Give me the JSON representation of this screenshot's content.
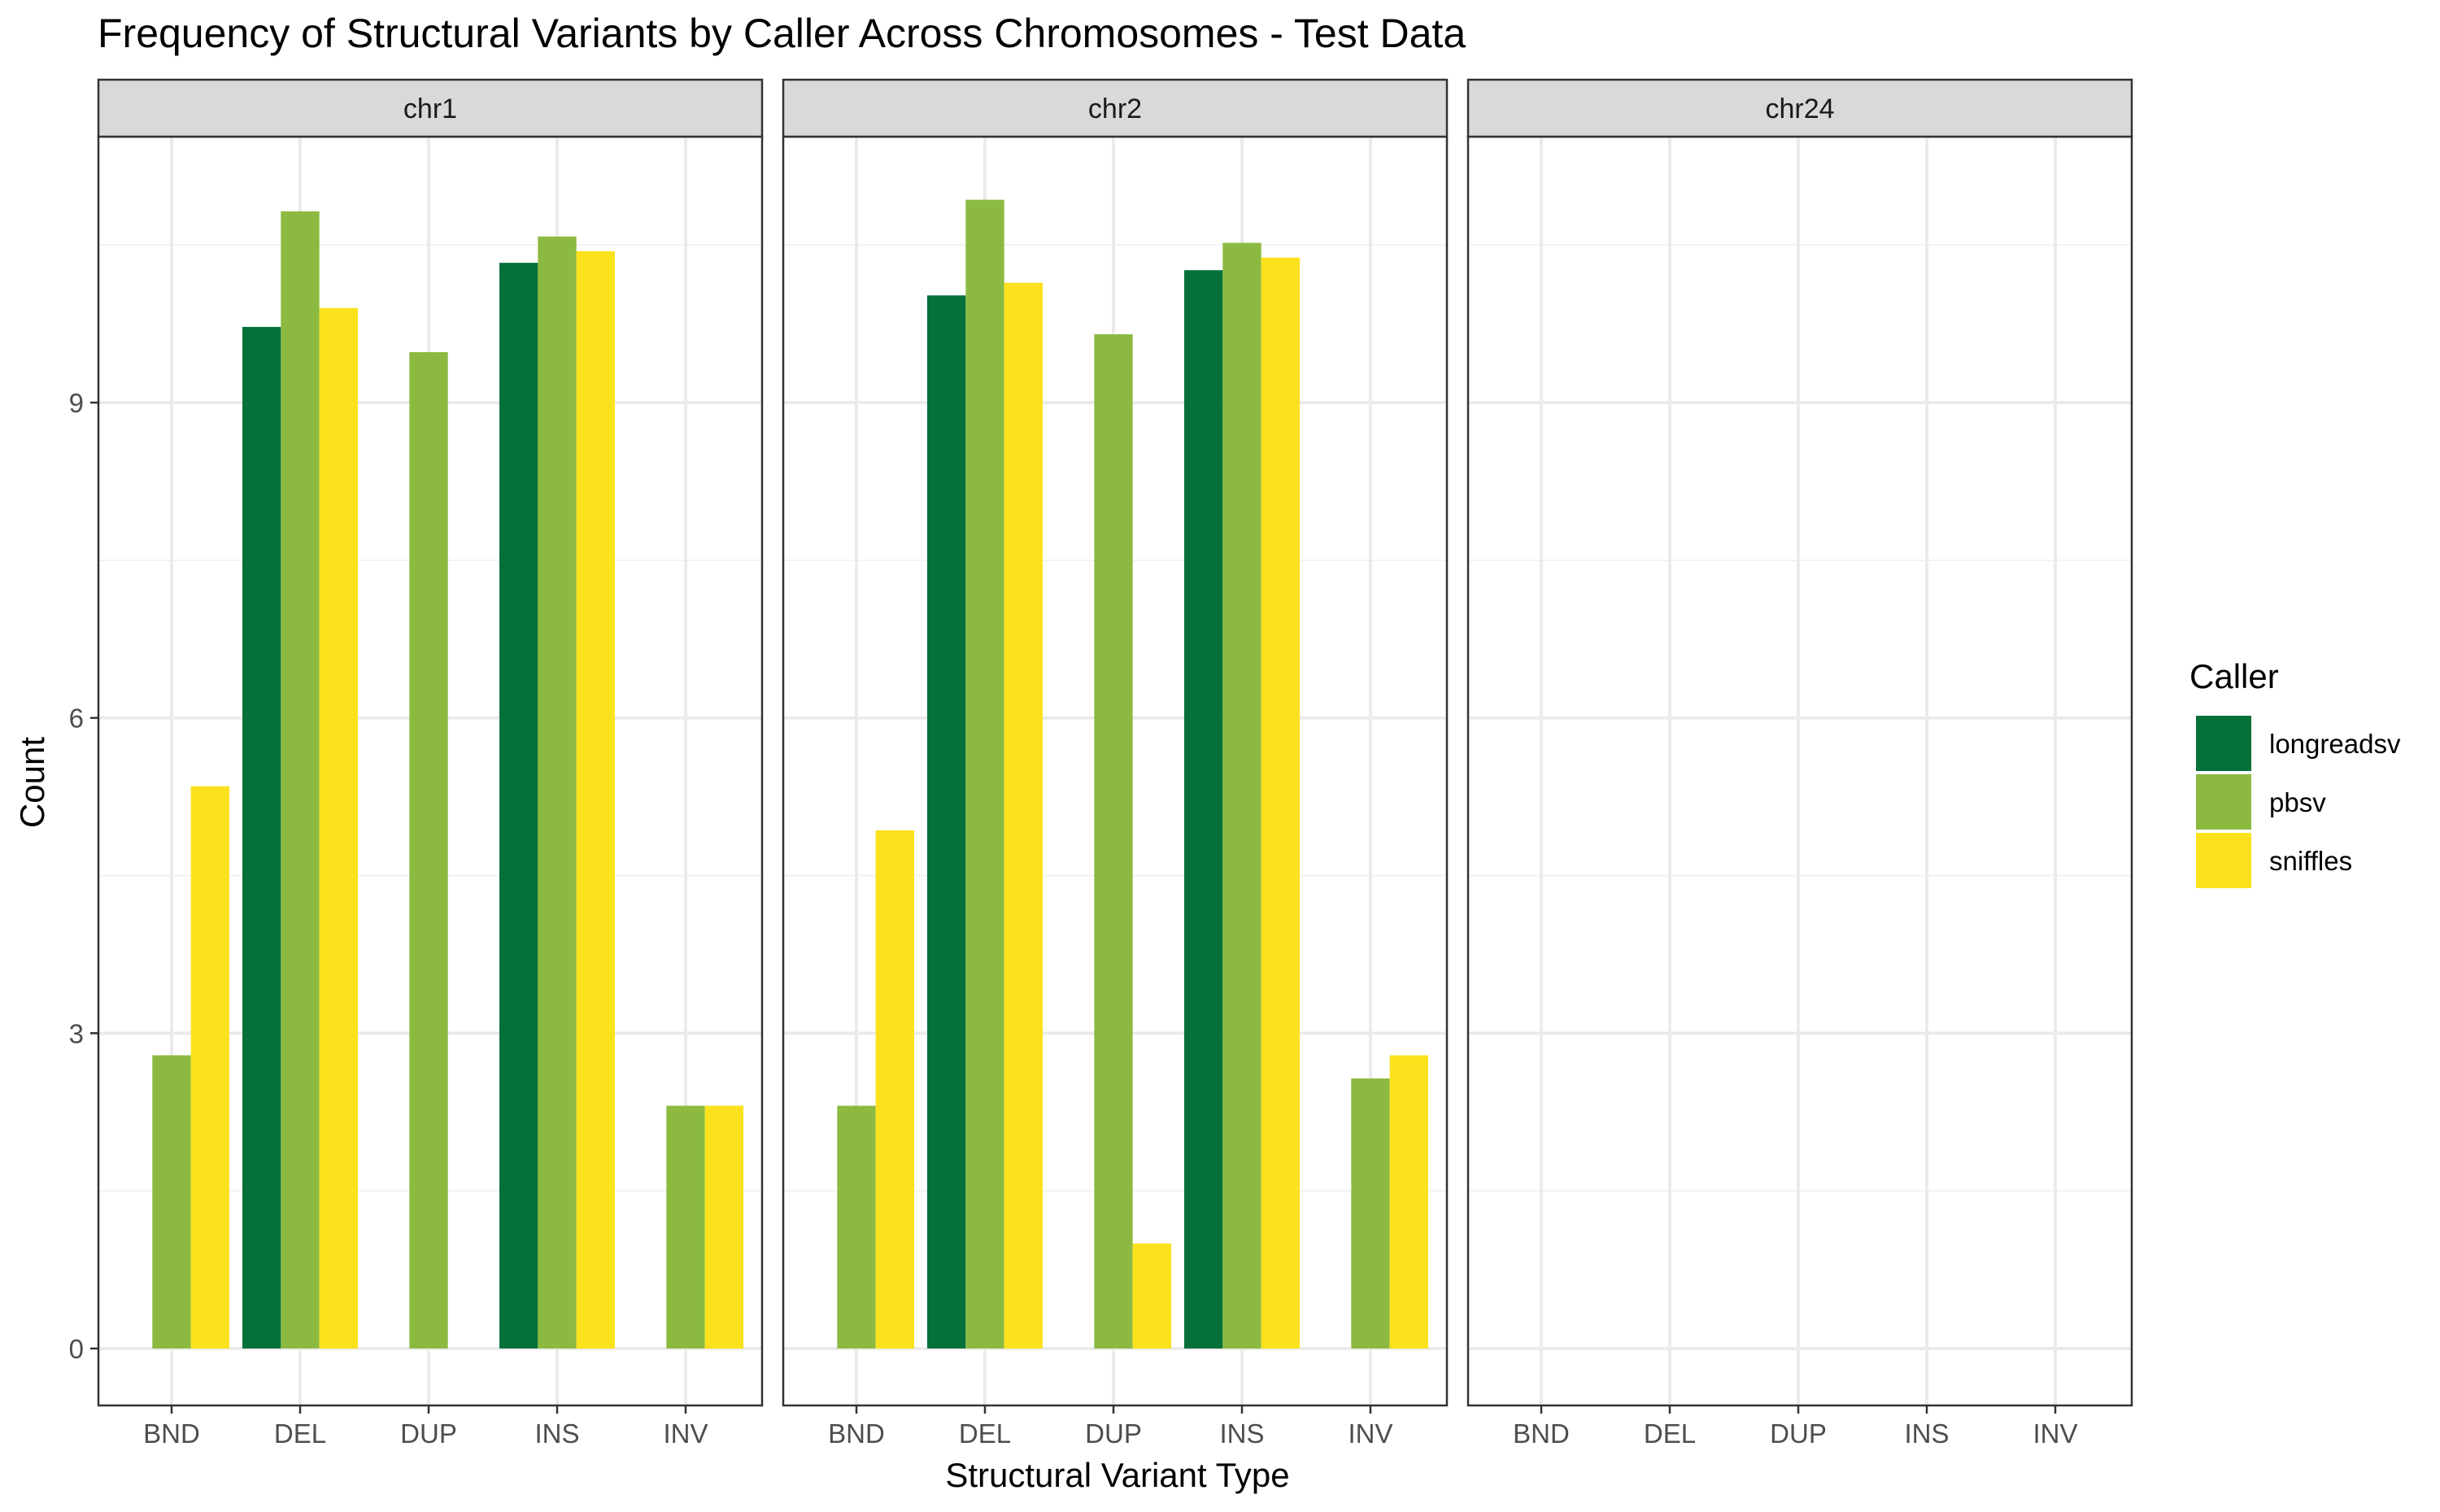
{
  "chart_data": {
    "type": "bar",
    "title": "Frequency of Structural Variants by Caller Across Chromosomes - Test Data",
    "xlabel": "Structural Variant Type",
    "ylabel": "Count",
    "ylim": [
      0,
      11.5
    ],
    "yticks": [
      0,
      3,
      6,
      9
    ],
    "grid": true,
    "legend": {
      "title": "Caller",
      "position": "right"
    },
    "categories": [
      "BND",
      "DEL",
      "DUP",
      "INS",
      "INV"
    ],
    "callers": [
      {
        "name": "longreadsv",
        "color": "#06703A"
      },
      {
        "name": "pbsv",
        "color": "#8CBA41"
      },
      {
        "name": "sniffles",
        "color": "#FBE21C"
      }
    ],
    "facets": [
      {
        "label": "chr1",
        "series": [
          {
            "name": "longreadsv",
            "values": [
              null,
              9.72,
              null,
              10.33,
              null
            ]
          },
          {
            "name": "pbsv",
            "values": [
              2.79,
              10.82,
              9.48,
              10.58,
              2.31
            ]
          },
          {
            "name": "sniffles",
            "values": [
              5.35,
              9.9,
              null,
              10.44,
              2.31
            ]
          }
        ]
      },
      {
        "label": "chr2",
        "series": [
          {
            "name": "longreadsv",
            "values": [
              null,
              10.02,
              null,
              10.26,
              null
            ]
          },
          {
            "name": "pbsv",
            "values": [
              2.31,
              10.93,
              9.65,
              10.52,
              2.57
            ]
          },
          {
            "name": "sniffles",
            "values": [
              4.93,
              10.14,
              1.0,
              10.38,
              2.79
            ]
          }
        ]
      },
      {
        "label": "chr24",
        "series": [
          {
            "name": "longreadsv",
            "values": [
              null,
              null,
              null,
              null,
              null
            ]
          },
          {
            "name": "pbsv",
            "values": [
              null,
              null,
              null,
              null,
              null
            ]
          },
          {
            "name": "sniffles",
            "values": [
              null,
              null,
              null,
              null,
              null
            ]
          }
        ]
      }
    ]
  }
}
